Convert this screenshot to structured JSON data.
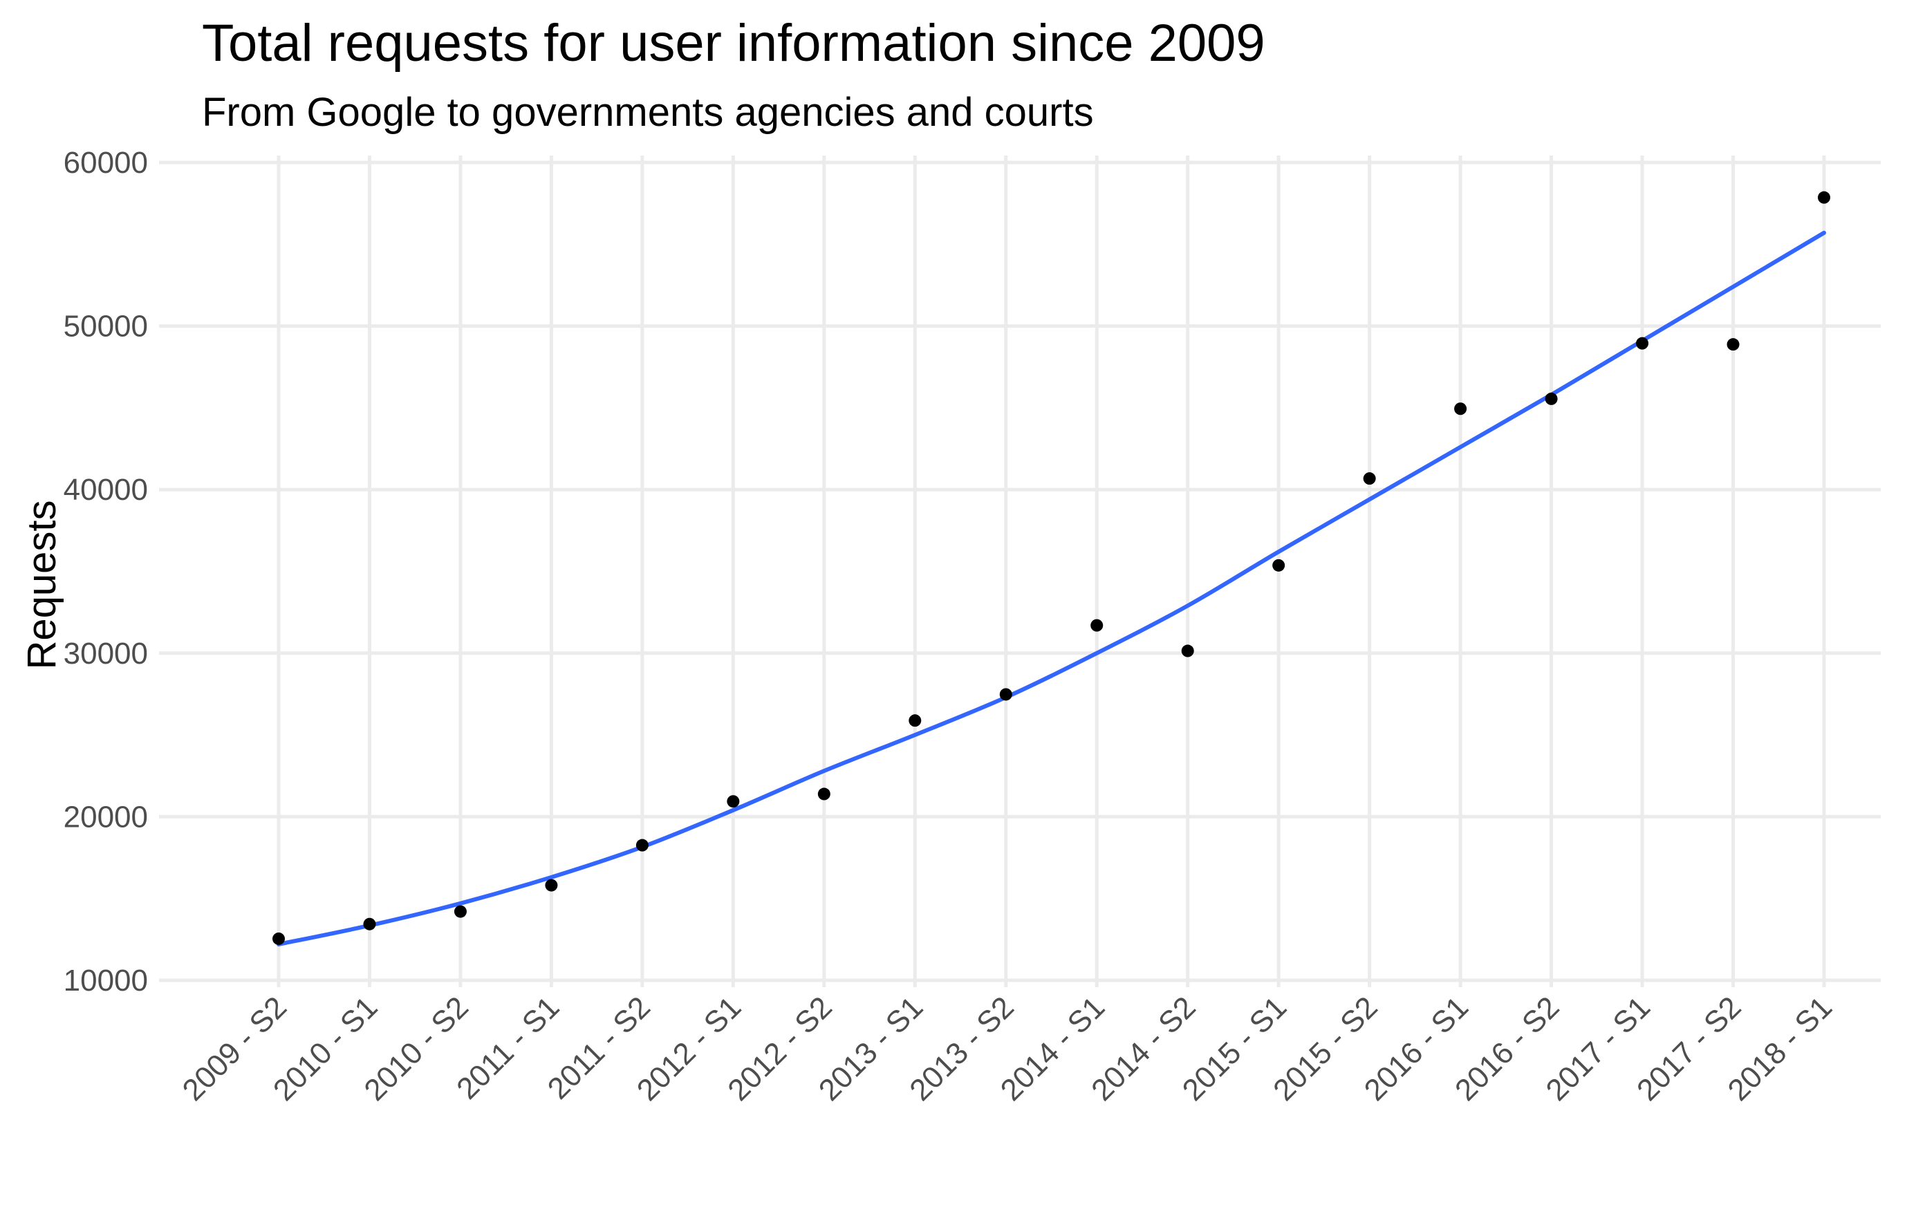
{
  "colors": {
    "background": "#ffffff",
    "grid": "#ebebeb",
    "point": "#000000",
    "trend_line": "#3366ff",
    "tick_text": "#4d4d4d"
  },
  "chart_data": {
    "type": "scatter",
    "title": "Total requests for user information since 2009",
    "subtitle": "From Google to governments agencies and courts",
    "xlabel": "",
    "ylabel": "Requests",
    "categories": [
      "2009 - S2",
      "2010 - S1",
      "2010 - S2",
      "2011 - S1",
      "2011 - S2",
      "2012 - S1",
      "2012 - S2",
      "2013 - S1",
      "2013 - S2",
      "2014 - S1",
      "2014 - S2",
      "2015 - S1",
      "2015 - S2",
      "2016 - S1",
      "2016 - S2",
      "2017 - S1",
      "2017 - S2",
      "2018 - S1"
    ],
    "series": [
      {
        "values": [
          12539,
          13435,
          14201,
          15807,
          18257,
          20938,
          21389,
          25879,
          27477,
          31698,
          30138,
          35365,
          40677,
          44943,
          45550,
          48941,
          48877,
          57860
        ]
      }
    ],
    "trend": [
      12200,
      13350,
      14700,
      16300,
      18150,
      20400,
      22800,
      25000,
      27300,
      30000,
      32900,
      36200,
      39400,
      42600,
      45800,
      49100,
      52400,
      55700
    ],
    "ylim": [
      10000,
      60000
    ],
    "yticks": [
      "10000",
      "20000",
      "30000",
      "40000",
      "50000",
      "60000"
    ],
    "grid": true,
    "legend": "none"
  }
}
